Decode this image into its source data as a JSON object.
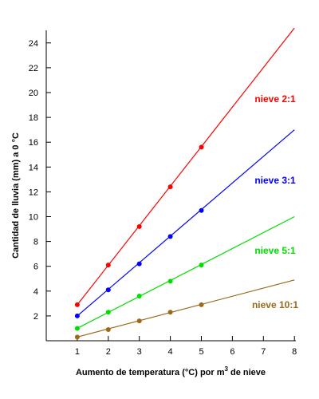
{
  "chart_data": {
    "type": "line",
    "title": "",
    "xlabel": "Aumento de temperatura (°C) por m",
    "xlabel_superscript": "3",
    "xlabel_suffix": " de nieve",
    "ylabel": "Cantidad de lluvia (mm) a 0 °C",
    "xlim": [
      0,
      8
    ],
    "ylim": [
      0,
      25
    ],
    "x_ticks": [
      "1",
      "2",
      "3",
      "4",
      "5",
      "6",
      "7",
      "8"
    ],
    "y_ticks": [
      "2",
      "4",
      "6",
      "8",
      "10",
      "12",
      "14",
      "16",
      "18",
      "20",
      "22",
      "24"
    ],
    "grid": false,
    "legend": "inline labels right",
    "series": [
      {
        "name": "nieve 2:1",
        "color": "#ff0000",
        "points_x": [
          1,
          2,
          3,
          4,
          5
        ],
        "points_y": [
          2.9,
          6.1,
          9.2,
          12.4,
          15.6
        ],
        "line": [
          [
            1,
            2.9
          ],
          [
            8,
            25.2
          ]
        ]
      },
      {
        "name": "nieve 3:1",
        "color": "#0000ff",
        "points_x": [
          1,
          2,
          3,
          4,
          5
        ],
        "points_y": [
          2.0,
          4.1,
          6.2,
          8.4,
          10.5
        ],
        "line": [
          [
            1,
            2.0
          ],
          [
            8,
            17.0
          ]
        ]
      },
      {
        "name": "nieve 5:1",
        "color": "#00dd00",
        "points_x": [
          1,
          2,
          3,
          4,
          5
        ],
        "points_y": [
          1.0,
          2.3,
          3.6,
          4.8,
          6.1
        ],
        "line": [
          [
            1,
            1.0
          ],
          [
            8,
            10.0
          ]
        ]
      },
      {
        "name": "nieve 10:1",
        "color": "#9a6a1a",
        "points_x": [
          1,
          2,
          3,
          4,
          5
        ],
        "points_y": [
          0.3,
          0.9,
          1.6,
          2.3,
          2.9
        ],
        "line": [
          [
            1,
            0.3
          ],
          [
            8,
            4.9
          ]
        ]
      }
    ]
  }
}
